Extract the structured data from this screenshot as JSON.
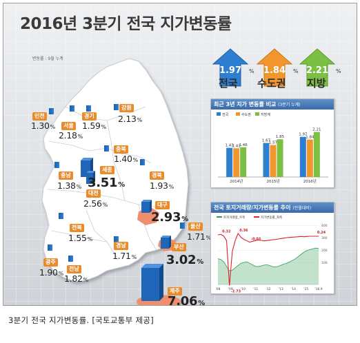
{
  "title": "2016년 3분기 전국 지가변동률",
  "unit_note": "변동률 : 9월 누계",
  "summary": [
    {
      "label": "전국",
      "value": "1.97",
      "unit": "%",
      "color": "#2f7fd1"
    },
    {
      "label": "수도권",
      "value": "1.84",
      "unit": "%",
      "color": "#f0962d"
    },
    {
      "label": "지방",
      "value": "2.21",
      "unit": "%",
      "color": "#7cc043"
    }
  ],
  "regions": [
    {
      "name": "인천",
      "value": "1.30"
    },
    {
      "name": "서울",
      "value": "2.18"
    },
    {
      "name": "경기",
      "value": "1.59"
    },
    {
      "name": "강원",
      "value": "2.13"
    },
    {
      "name": "충북",
      "value": "1.40"
    },
    {
      "name": "충남",
      "value": "1.38"
    },
    {
      "name": "세종",
      "value": "3.51"
    },
    {
      "name": "대전",
      "value": "2.56"
    },
    {
      "name": "경북",
      "value": "1.93"
    },
    {
      "name": "대구",
      "value": "2.93"
    },
    {
      "name": "전북",
      "value": "1.55"
    },
    {
      "name": "울산",
      "value": "1.71"
    },
    {
      "name": "경남",
      "value": "1.71"
    },
    {
      "name": "부산",
      "value": "3.02"
    },
    {
      "name": "광주",
      "value": "1.90"
    },
    {
      "name": "전남",
      "value": "1.82"
    },
    {
      "name": "제주",
      "value": "7.06"
    }
  ],
  "percent_sign": "%",
  "panel1": {
    "title": "최근 3년 지가 변동률 비교",
    "subtitle": "(3분기 누계)"
  },
  "panel2": {
    "title": "전국 토지거래량/지가변동률 추이",
    "subtitle": "(전월대비)"
  },
  "caption": "3분기 전국 지가변동률. [국토교통부 제공]",
  "chart_data": [
    {
      "type": "bar",
      "title": "최근 3년 지가 변동률 비교",
      "subtitle": "(3분기 누계)",
      "categories": [
        "2014년",
        "2015년",
        "2016년"
      ],
      "series": [
        {
          "name": "전국",
          "values": [
            1.43,
            1.67,
            1.97
          ],
          "color": "#2f7fd1"
        },
        {
          "name": "수도권",
          "values": [
            1.41,
            1.57,
            1.84
          ],
          "color": "#f0962d"
        },
        {
          "name": "지방계",
          "values": [
            1.46,
            1.85,
            2.21
          ],
          "color": "#7cc043"
        }
      ],
      "legend": "top-left",
      "grid": false
    },
    {
      "type": "line",
      "title": "전국 토지거래량/지가변동률 추이",
      "subtitle": "(전월대비)",
      "x_ticks": [
        "'08",
        "'09",
        "'10",
        "'11",
        "'12",
        "'13",
        "'14",
        "'15",
        "'16.9"
      ],
      "series": [
        {
          "name": "토지거래량_우축",
          "color": "#2f9a57",
          "values": [
            170,
            165,
            150,
            120,
            90,
            95,
            110,
            125,
            140,
            145,
            150,
            140,
            130,
            120,
            118,
            122,
            128,
            130,
            125,
            118,
            115,
            120,
            128,
            135,
            140,
            150,
            160,
            170,
            185,
            200,
            215,
            225,
            230,
            235,
            240,
            238
          ]
        },
        {
          "name": "지가변동률_좌축",
          "color": "#d8232a",
          "values": [
            0.3,
            0.32,
            0.25,
            0.05,
            -2.73,
            -0.6,
            0.05,
            0.36,
            0.2,
            0.1,
            0.05,
            -0.03,
            0.02,
            0.05,
            0.08,
            0.06,
            0.04,
            0.05,
            0.07,
            0.09,
            0.1,
            0.12,
            0.14,
            0.16,
            0.18,
            0.19,
            0.2,
            0.21,
            0.22,
            0.23,
            0.22,
            0.23,
            0.24,
            0.24,
            0.24,
            0.24
          ]
        }
      ],
      "annotations": [
        "0.32",
        "0.36",
        "-2.73",
        "-0.03",
        "0.24"
      ],
      "right_axis_ticks": [
        "400",
        "300",
        "200",
        "100"
      ],
      "legend": "top-left"
    }
  ]
}
